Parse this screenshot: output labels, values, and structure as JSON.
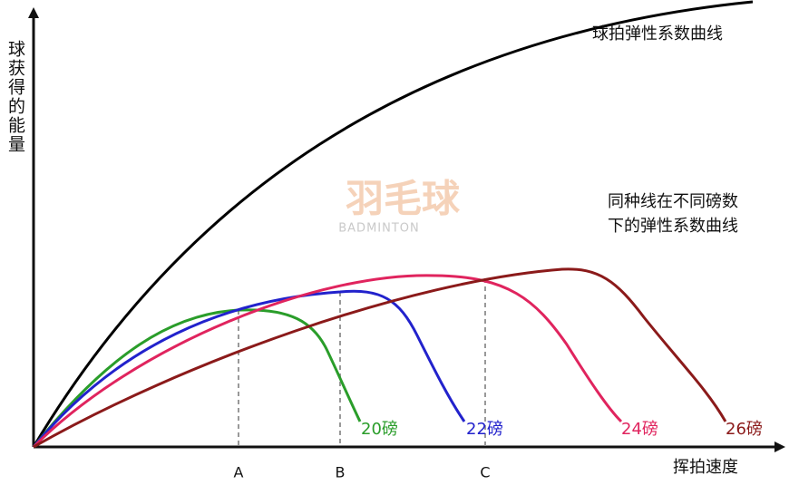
{
  "y_axis_label": "球获得的能量",
  "x_axis_label": "挥拍速度",
  "curve_label": "球拍弹性系数曲线",
  "annotation": [
    "同种线在不同磅数",
    "下的弹性系数曲线"
  ],
  "watermark": {
    "title": "羽毛球",
    "subtitle": "BADMINTON"
  },
  "string_curves": [
    "20磅",
    "22磅",
    "24磅",
    "26磅"
  ],
  "points": [
    "A",
    "B",
    "C"
  ]
}
